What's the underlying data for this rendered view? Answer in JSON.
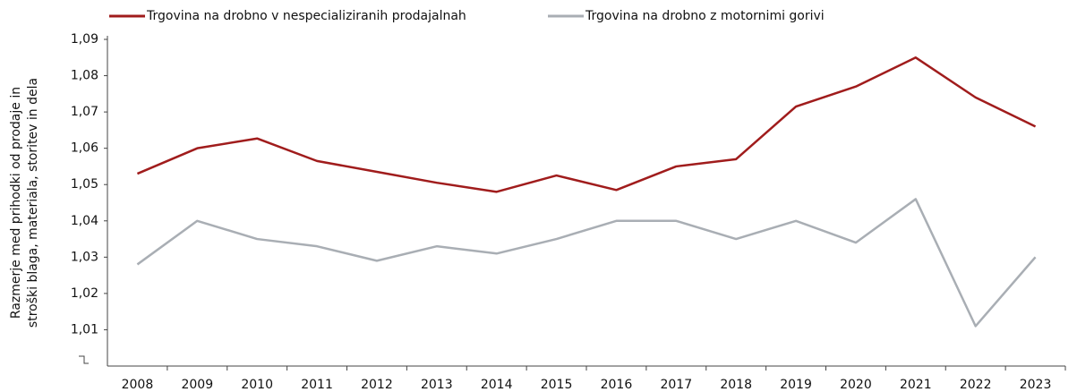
{
  "chart_data": {
    "type": "line",
    "ylabel": [
      "Razmerje med prihodki od prodaje in",
      "stroški blaga, materiala, storitev in dela"
    ],
    "categories": [
      "2008",
      "2009",
      "2010",
      "2011",
      "2012",
      "2013",
      "2014",
      "2015",
      "2016",
      "2017",
      "2018",
      "2019",
      "2020",
      "2021",
      "2022",
      "2023"
    ],
    "series": [
      {
        "name": "Trgovina na drobno v nespecializiranih prodajalnah",
        "color": "#a01c1c",
        "values": [
          1.053,
          1.06,
          1.0627,
          1.0565,
          1.0535,
          1.0505,
          1.048,
          1.0525,
          1.0485,
          1.055,
          1.057,
          1.0715,
          1.077,
          1.085,
          1.074,
          1.066
        ]
      },
      {
        "name": "Trgovina na drobno z motornimi gorivi",
        "color": "#a9aeb4",
        "values": [
          1.028,
          1.04,
          1.035,
          1.033,
          1.029,
          1.033,
          1.031,
          1.035,
          1.04,
          1.04,
          1.035,
          1.04,
          1.034,
          1.046,
          1.011,
          1.03
        ]
      }
    ],
    "ylim": [
      1.0,
      1.09
    ],
    "yticks": [
      {
        "value": 1.01,
        "label": "1,01"
      },
      {
        "value": 1.02,
        "label": "1,02"
      },
      {
        "value": 1.03,
        "label": "1,03"
      },
      {
        "value": 1.04,
        "label": "1,04"
      },
      {
        "value": 1.05,
        "label": "1,05"
      },
      {
        "value": 1.06,
        "label": "1,06"
      },
      {
        "value": 1.07,
        "label": "1,07"
      },
      {
        "value": 1.08,
        "label": "1,08"
      },
      {
        "value": 1.09,
        "label": "1,09"
      }
    ],
    "grid": false
  }
}
